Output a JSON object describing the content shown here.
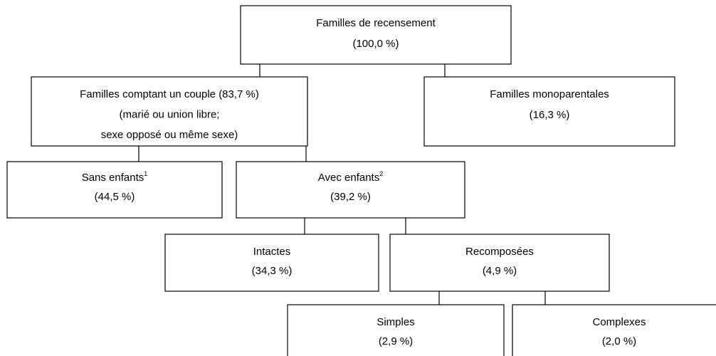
{
  "nodes": [
    {
      "lines": [
        "Familles de recensement",
        "(100,0 %)"
      ]
    },
    {
      "lines": [
        "Familles comptant un couple (83,7 %)",
        "(marié ou union libre;",
        "sexe opposé ou même sexe)"
      ]
    },
    {
      "lines": [
        "Familles monoparentales",
        "(16,3 %)"
      ]
    },
    {
      "lines": [
        "Sans enfants",
        "(44,5 %)"
      ],
      "superscript": "1"
    },
    {
      "lines": [
        "Avec enfants",
        "(39,2 %)"
      ],
      "superscript": "2"
    },
    {
      "lines": [
        "Intactes",
        "(34,3 %)"
      ]
    },
    {
      "lines": [
        "Recomposées",
        "(4,9 %)"
      ]
    },
    {
      "lines": [
        "Simples",
        "(2,9 %)"
      ]
    },
    {
      "lines": [
        "Complexes",
        "(2,0 %)"
      ]
    }
  ]
}
